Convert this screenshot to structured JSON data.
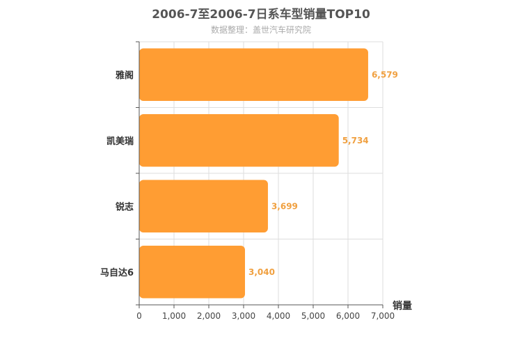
{
  "chart_data": {
    "type": "bar",
    "orientation": "horizontal",
    "title": "2006-7至2006-7日系车型销量TOP10",
    "subtitle": "数据整理：盖世汽车研究院",
    "categories": [
      "雅阁",
      "凯美瑞",
      "锐志",
      "马自达6"
    ],
    "values": [
      6579,
      5734,
      3699,
      3040
    ],
    "value_labels": [
      "6,579",
      "5,734",
      "3,699",
      "3,040"
    ],
    "xlabel": "销量",
    "ylabel": "",
    "xlim": [
      0,
      7000
    ],
    "x_ticks": [
      0,
      1000,
      2000,
      3000,
      4000,
      5000,
      6000,
      7000
    ],
    "x_tick_labels": [
      "0",
      "1,000",
      "2,000",
      "3,000",
      "4,000",
      "5,000",
      "6,000",
      "7,000"
    ],
    "grid": true,
    "bar_color": "#ff9d33",
    "value_label_color": "#f0a040"
  }
}
